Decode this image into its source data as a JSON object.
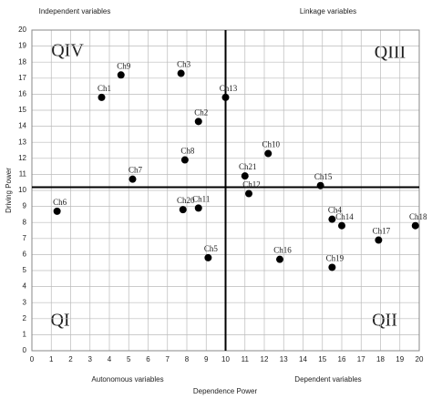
{
  "chart_data": {
    "type": "scatter",
    "x_label": "Dependence Power",
    "y_label": "Driving Power",
    "xlim": [
      0,
      20
    ],
    "ylim": [
      0,
      20
    ],
    "xticks": [
      0,
      1,
      2,
      3,
      4,
      5,
      6,
      7,
      8,
      9,
      10,
      11,
      12,
      13,
      14,
      15,
      16,
      17,
      18,
      19,
      20
    ],
    "yticks": [
      0,
      1,
      2,
      3,
      4,
      5,
      6,
      7,
      8,
      9,
      10,
      11,
      12,
      13,
      14,
      15,
      16,
      17,
      18,
      19,
      20
    ],
    "grid": true,
    "color": "#000000",
    "divider_x": 10,
    "divider_y": 10.2,
    "quadrants": {
      "top_left": "QIV",
      "top_right": "QIII",
      "bottom_left": "QI",
      "bottom_right": "QII"
    },
    "corner_labels": {
      "top_left": "Independent variables",
      "top_right": "Linkage variables",
      "bottom_left": "Autonomous variables",
      "bottom_right": "Dependent variables"
    },
    "labels": [
      "Ch1",
      "Ch9",
      "Ch3",
      "Ch13",
      "Ch2",
      "Ch8",
      "Ch7",
      "Ch10",
      "Ch21",
      "Ch12",
      "Ch15",
      "Ch6",
      "Ch20",
      "Ch11",
      "Ch4",
      "Ch14",
      "Ch18",
      "Ch17",
      "Ch5",
      "Ch16",
      "Ch19"
    ],
    "x": [
      3.6,
      4.6,
      7.7,
      10,
      8.6,
      7.9,
      5.2,
      12.2,
      11,
      11.2,
      14.9,
      1.3,
      7.8,
      8.6,
      15.5,
      16,
      19.8,
      17.9,
      9.1,
      12.8,
      15.5
    ],
    "y": [
      15.8,
      17.2,
      17.3,
      15.8,
      14.3,
      11.9,
      10.7,
      12.3,
      10.9,
      9.8,
      10.3,
      8.7,
      8.8,
      8.9,
      8.2,
      7.8,
      7.8,
      6.9,
      5.8,
      5.7,
      5.2
    ]
  }
}
